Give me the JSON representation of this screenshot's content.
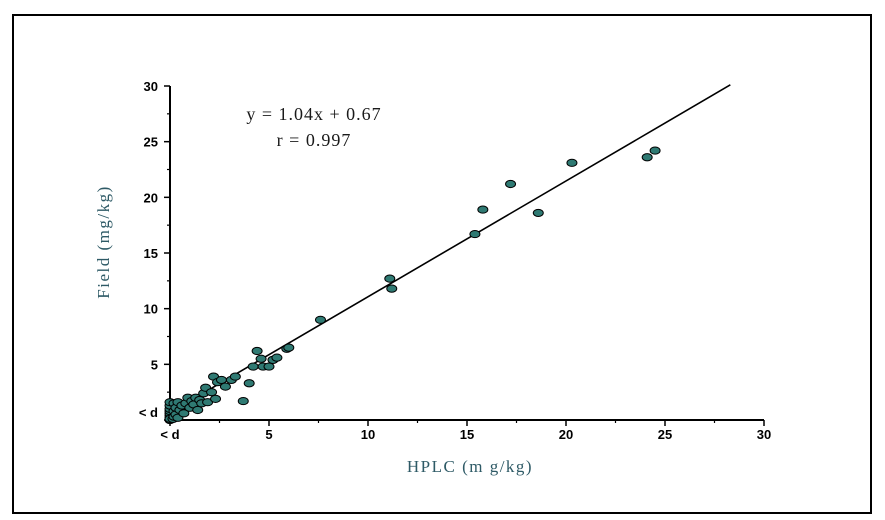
{
  "chart_data": {
    "type": "scatter",
    "title": "",
    "xlabel": "HPLC (m g/kg)",
    "ylabel": "Field (mg/kg)",
    "xlim": [
      0,
      30
    ],
    "ylim": [
      0,
      30
    ],
    "x_ticks": [
      {
        "value": 0,
        "label": "< d"
      },
      {
        "value": 5,
        "label": "5"
      },
      {
        "value": 10,
        "label": "10"
      },
      {
        "value": 15,
        "label": "15"
      },
      {
        "value": 20,
        "label": "20"
      },
      {
        "value": 25,
        "label": "25"
      },
      {
        "value": 30,
        "label": "30"
      }
    ],
    "y_ticks": [
      {
        "value": 0,
        "label": "< d"
      },
      {
        "value": 5,
        "label": "5"
      },
      {
        "value": 10,
        "label": "10"
      },
      {
        "value": 15,
        "label": "15"
      },
      {
        "value": 20,
        "label": "20"
      },
      {
        "value": 25,
        "label": "25"
      },
      {
        "value": 30,
        "label": "30"
      }
    ],
    "annotations": [
      "y = 1.04x + 0.67",
      "r = 0.997"
    ],
    "fit_line": {
      "slope": 1.04,
      "intercept": 0.67,
      "x_range": [
        0,
        28.3
      ]
    },
    "marker_color": "#2f7a73",
    "marker_edge": "#000000",
    "grid": false,
    "legend": "none",
    "points": [
      [
        0.0,
        0.0
      ],
      [
        0.0,
        0.2
      ],
      [
        0.0,
        0.4
      ],
      [
        0.0,
        0.6
      ],
      [
        0.0,
        0.8
      ],
      [
        0.0,
        1.0
      ],
      [
        0.0,
        1.3
      ],
      [
        0.0,
        1.6
      ],
      [
        0.0,
        0.1
      ],
      [
        0.15,
        0.1
      ],
      [
        0.2,
        0.3
      ],
      [
        0.2,
        0.8
      ],
      [
        0.2,
        1.5
      ],
      [
        0.3,
        0.5
      ],
      [
        0.3,
        1.1
      ],
      [
        0.4,
        0.2
      ],
      [
        0.4,
        1.6
      ],
      [
        0.5,
        0.9
      ],
      [
        0.6,
        1.3
      ],
      [
        0.7,
        0.6
      ],
      [
        0.8,
        1.5
      ],
      [
        0.9,
        2.0
      ],
      [
        1.0,
        1.1
      ],
      [
        1.1,
        1.7
      ],
      [
        1.2,
        1.4
      ],
      [
        1.3,
        2.0
      ],
      [
        1.4,
        0.9
      ],
      [
        1.5,
        1.8
      ],
      [
        1.6,
        1.5
      ],
      [
        1.7,
        2.4
      ],
      [
        1.8,
        2.9
      ],
      [
        1.9,
        1.6
      ],
      [
        2.1,
        2.5
      ],
      [
        2.2,
        3.9
      ],
      [
        2.3,
        1.9
      ],
      [
        2.4,
        3.4
      ],
      [
        2.6,
        3.6
      ],
      [
        2.8,
        3.0
      ],
      [
        3.1,
        3.6
      ],
      [
        3.3,
        3.9
      ],
      [
        3.7,
        1.7
      ],
      [
        4.0,
        3.3
      ],
      [
        4.2,
        4.8
      ],
      [
        4.4,
        6.2
      ],
      [
        4.6,
        5.5
      ],
      [
        4.7,
        4.8
      ],
      [
        5.0,
        4.8
      ],
      [
        5.2,
        5.4
      ],
      [
        5.4,
        5.6
      ],
      [
        5.9,
        6.4
      ],
      [
        6.0,
        6.5
      ],
      [
        7.6,
        9.0
      ],
      [
        11.1,
        12.7
      ],
      [
        11.2,
        11.8
      ],
      [
        15.4,
        16.7
      ],
      [
        15.8,
        18.9
      ],
      [
        17.2,
        21.2
      ],
      [
        18.6,
        18.6
      ],
      [
        20.3,
        23.1
      ],
      [
        24.1,
        23.6
      ],
      [
        24.5,
        24.2
      ]
    ]
  }
}
